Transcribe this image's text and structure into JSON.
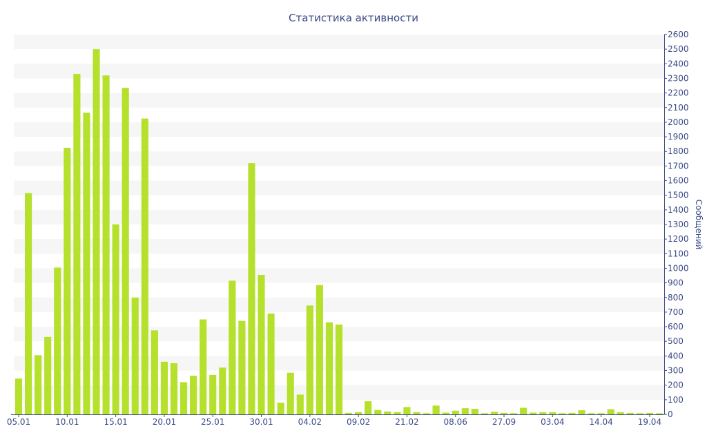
{
  "chart_data": {
    "type": "bar",
    "title": "Статистика активности",
    "ylabel": "Сообщений",
    "xlabel": "",
    "ylim": [
      0,
      2600
    ],
    "y_ticks": [
      0,
      100,
      200,
      300,
      400,
      500,
      600,
      700,
      800,
      900,
      1000,
      1100,
      1200,
      1300,
      1400,
      1500,
      1600,
      1700,
      1800,
      1900,
      2000,
      2100,
      2200,
      2300,
      2400,
      2500,
      2600
    ],
    "y_axis_position": "right",
    "grid": "alternating horizontal bands",
    "bar_color": "#b5e02b",
    "text_color": "#3a4a85",
    "band_color": "#f6f6f6",
    "x_tick_labels": [
      {
        "index": 0,
        "label": "05.01"
      },
      {
        "index": 5,
        "label": "10.01"
      },
      {
        "index": 10,
        "label": "15.01"
      },
      {
        "index": 15,
        "label": "20.01"
      },
      {
        "index": 20,
        "label": "25.01"
      },
      {
        "index": 25,
        "label": "30.01"
      },
      {
        "index": 30,
        "label": "04.02"
      },
      {
        "index": 35,
        "label": "09.02"
      },
      {
        "index": 40,
        "label": "21.02"
      },
      {
        "index": 45,
        "label": "08.06"
      },
      {
        "index": 50,
        "label": "27.09"
      },
      {
        "index": 55,
        "label": "03.04"
      },
      {
        "index": 60,
        "label": "14.04"
      },
      {
        "index": 65,
        "label": "19.04"
      }
    ],
    "values": [
      245,
      1515,
      405,
      530,
      1005,
      1825,
      2330,
      2065,
      2500,
      2320,
      1300,
      2235,
      800,
      2025,
      575,
      360,
      350,
      220,
      265,
      650,
      270,
      320,
      915,
      640,
      1720,
      955,
      690,
      80,
      285,
      135,
      745,
      885,
      630,
      615,
      10,
      15,
      90,
      30,
      20,
      15,
      50,
      15,
      8,
      60,
      12,
      25,
      42,
      38,
      8,
      18,
      10,
      8,
      45,
      12,
      15,
      15,
      8,
      10,
      28,
      8,
      8,
      35,
      15,
      10,
      8,
      10,
      8
    ]
  }
}
